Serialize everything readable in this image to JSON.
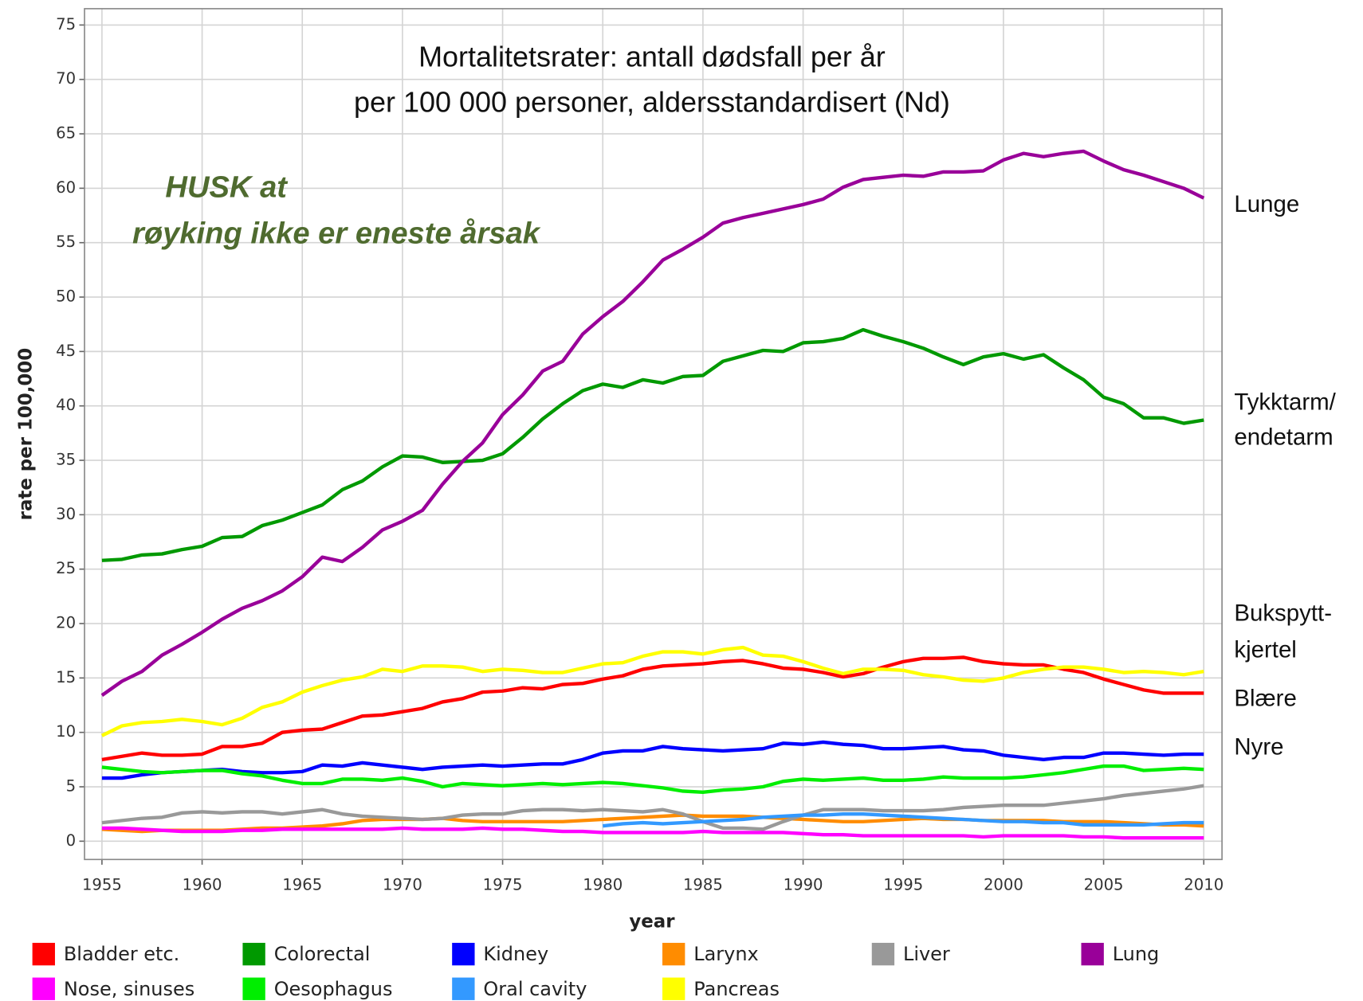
{
  "chart_data": {
    "type": "line",
    "title": [
      "Mortalitetsrater: antall dødsfall per år",
      "per 100 000 personer, aldersstandardisert (Nd)"
    ],
    "annotation": [
      "HUSK at",
      "røyking ikke er eneste årsak"
    ],
    "side_labels": [
      "Lunge",
      "Tykktarm/",
      "endetarm",
      "Bukspytt-",
      "kjertel",
      "Blære",
      "Nyre"
    ],
    "xlabel": "year",
    "ylabel": "rate per 100,000",
    "x": [
      1955,
      1956,
      1957,
      1958,
      1959,
      1960,
      1961,
      1962,
      1963,
      1964,
      1965,
      1966,
      1967,
      1968,
      1969,
      1970,
      1971,
      1972,
      1973,
      1974,
      1975,
      1976,
      1977,
      1978,
      1979,
      1980,
      1981,
      1982,
      1983,
      1984,
      1985,
      1986,
      1987,
      1988,
      1989,
      1990,
      1991,
      1992,
      1993,
      1994,
      1995,
      1996,
      1997,
      1998,
      1999,
      2000,
      2001,
      2002,
      2003,
      2004,
      2005,
      2006,
      2007,
      2008,
      2009,
      2010
    ],
    "xlim": [
      1954.13,
      2010.91
    ],
    "xticks": [
      1955,
      1960,
      1965,
      1970,
      1975,
      1980,
      1985,
      1990,
      1995,
      2000,
      2005,
      2010
    ],
    "ylim": [
      -1.68,
      76.5
    ],
    "yticks": [
      0,
      5,
      10,
      15,
      20,
      25,
      30,
      35,
      40,
      45,
      50,
      55,
      60,
      65,
      70,
      75
    ],
    "grid": true,
    "series": [
      {
        "name": "Bladder etc.",
        "color": "#ff0000",
        "values": [
          7.5,
          7.8,
          8.1,
          7.9,
          7.9,
          8.0,
          8.7,
          8.7,
          9.0,
          10.0,
          10.2,
          10.3,
          10.9,
          11.5,
          11.6,
          11.9,
          12.2,
          12.8,
          13.1,
          13.7,
          13.8,
          14.1,
          14.0,
          14.4,
          14.5,
          14.9,
          15.2,
          15.8,
          16.1,
          16.2,
          16.3,
          16.5,
          16.6,
          16.3,
          15.9,
          15.8,
          15.5,
          15.1,
          15.4,
          16.0,
          16.5,
          16.8,
          16.8,
          16.9,
          16.5,
          16.3,
          16.2,
          16.2,
          15.8,
          15.5,
          14.9,
          14.4,
          13.9,
          13.6,
          13.6,
          13.6
        ]
      },
      {
        "name": "Colorectal",
        "color": "#009900",
        "values": [
          25.8,
          25.9,
          26.3,
          26.4,
          26.8,
          27.1,
          27.9,
          28.0,
          29.0,
          29.5,
          30.2,
          30.9,
          32.3,
          33.1,
          34.4,
          35.4,
          35.3,
          34.8,
          34.9,
          35.0,
          35.6,
          37.1,
          38.8,
          40.2,
          41.4,
          42.0,
          41.7,
          42.4,
          42.1,
          42.7,
          42.8,
          44.1,
          44.6,
          45.1,
          45.0,
          45.8,
          45.9,
          46.2,
          47.0,
          46.4,
          45.9,
          45.3,
          44.5,
          43.8,
          44.5,
          44.8,
          44.3,
          44.7,
          43.5,
          42.4,
          40.8,
          40.2,
          38.9,
          38.9,
          38.4,
          38.7
        ]
      },
      {
        "name": "Kidney",
        "color": "#0000ff",
        "values": [
          5.8,
          5.8,
          6.1,
          6.3,
          6.4,
          6.5,
          6.6,
          6.4,
          6.3,
          6.3,
          6.4,
          7.0,
          6.9,
          7.2,
          7.0,
          6.8,
          6.6,
          6.8,
          6.9,
          7.0,
          6.9,
          7.0,
          7.1,
          7.1,
          7.5,
          8.1,
          8.3,
          8.3,
          8.7,
          8.5,
          8.4,
          8.3,
          8.4,
          8.5,
          9.0,
          8.9,
          9.1,
          8.9,
          8.8,
          8.5,
          8.5,
          8.6,
          8.7,
          8.4,
          8.3,
          7.9,
          7.7,
          7.5,
          7.7,
          7.7,
          8.1,
          8.1,
          8.0,
          7.9,
          8.0,
          8.0
        ]
      },
      {
        "name": "Larynx",
        "color": "#ff8c00",
        "values": [
          1.1,
          1.0,
          0.9,
          1.0,
          1.0,
          1.0,
          1.0,
          1.1,
          1.2,
          1.2,
          1.3,
          1.4,
          1.6,
          1.9,
          2.0,
          2.0,
          2.0,
          2.1,
          1.9,
          1.8,
          1.8,
          1.8,
          1.8,
          1.8,
          1.9,
          2.0,
          2.1,
          2.2,
          2.3,
          2.4,
          2.3,
          2.3,
          2.3,
          2.2,
          2.1,
          2.0,
          1.9,
          1.8,
          1.8,
          1.9,
          2.0,
          2.1,
          2.0,
          2.0,
          1.9,
          1.9,
          1.9,
          1.9,
          1.8,
          1.8,
          1.8,
          1.7,
          1.6,
          1.5,
          1.5,
          1.4
        ]
      },
      {
        "name": "Liver",
        "color": "#999999",
        "values": [
          1.7,
          1.9,
          2.1,
          2.2,
          2.6,
          2.7,
          2.6,
          2.7,
          2.7,
          2.5,
          2.7,
          2.9,
          2.5,
          2.3,
          2.2,
          2.1,
          2.0,
          2.1,
          2.4,
          2.5,
          2.5,
          2.8,
          2.9,
          2.9,
          2.8,
          2.9,
          2.8,
          2.7,
          2.9,
          2.5,
          1.8,
          1.2,
          1.2,
          1.1,
          1.8,
          2.4,
          2.9,
          2.9,
          2.9,
          2.8,
          2.8,
          2.8,
          2.9,
          3.1,
          3.2,
          3.3,
          3.3,
          3.3,
          3.5,
          3.7,
          3.9,
          4.2,
          4.4,
          4.6,
          4.8,
          5.1
        ]
      },
      {
        "name": "Lung",
        "color": "#990099",
        "values": [
          13.4,
          14.7,
          15.6,
          17.1,
          18.1,
          19.2,
          20.4,
          21.4,
          22.1,
          23.0,
          24.3,
          26.1,
          25.7,
          27.0,
          28.6,
          29.4,
          30.4,
          32.8,
          34.9,
          36.6,
          39.2,
          41.0,
          43.2,
          44.1,
          46.6,
          48.2,
          49.6,
          51.4,
          53.4,
          54.4,
          55.5,
          56.8,
          57.3,
          57.7,
          58.1,
          58.5,
          59.0,
          60.1,
          60.8,
          61.0,
          61.2,
          61.1,
          61.5,
          61.5,
          61.6,
          62.6,
          63.2,
          62.9,
          63.2,
          63.4,
          62.5,
          61.7,
          61.2,
          60.6,
          60.0,
          59.1
        ]
      },
      {
        "name": "Nose, sinuses",
        "color": "#ff00ff",
        "values": [
          1.2,
          1.2,
          1.1,
          1.0,
          0.9,
          0.9,
          0.9,
          1.0,
          1.0,
          1.1,
          1.1,
          1.1,
          1.1,
          1.1,
          1.1,
          1.2,
          1.1,
          1.1,
          1.1,
          1.2,
          1.1,
          1.1,
          1.0,
          0.9,
          0.9,
          0.8,
          0.8,
          0.8,
          0.8,
          0.8,
          0.9,
          0.8,
          0.8,
          0.8,
          0.8,
          0.7,
          0.6,
          0.6,
          0.5,
          0.5,
          0.5,
          0.5,
          0.5,
          0.5,
          0.4,
          0.5,
          0.5,
          0.5,
          0.5,
          0.4,
          0.4,
          0.3,
          0.3,
          0.3,
          0.3,
          0.3
        ]
      },
      {
        "name": "Oesophagus",
        "color": "#00ee00",
        "values": [
          6.8,
          6.6,
          6.4,
          6.3,
          6.4,
          6.5,
          6.5,
          6.2,
          6.0,
          5.6,
          5.3,
          5.3,
          5.7,
          5.7,
          5.6,
          5.8,
          5.5,
          5.0,
          5.3,
          5.2,
          5.1,
          5.2,
          5.3,
          5.2,
          5.3,
          5.4,
          5.3,
          5.1,
          4.9,
          4.6,
          4.5,
          4.7,
          4.8,
          5.0,
          5.5,
          5.7,
          5.6,
          5.7,
          5.8,
          5.6,
          5.6,
          5.7,
          5.9,
          5.8,
          5.8,
          5.8,
          5.9,
          6.1,
          6.3,
          6.6,
          6.9,
          6.9,
          6.5,
          6.6,
          6.7,
          6.6
        ]
      },
      {
        "name": "Oral cavity",
        "color": "#3399ff",
        "values": [
          null,
          null,
          null,
          null,
          null,
          null,
          null,
          null,
          null,
          null,
          null,
          null,
          null,
          null,
          null,
          null,
          null,
          null,
          null,
          null,
          null,
          null,
          null,
          null,
          null,
          1.4,
          1.6,
          1.7,
          1.6,
          1.7,
          1.8,
          1.9,
          2.0,
          2.2,
          2.3,
          2.4,
          2.4,
          2.5,
          2.5,
          2.4,
          2.3,
          2.2,
          2.1,
          2.0,
          1.9,
          1.8,
          1.8,
          1.7,
          1.7,
          1.5,
          1.5,
          1.5,
          1.5,
          1.6,
          1.7,
          1.7
        ]
      },
      {
        "name": "Pancreas",
        "color": "#ffff00",
        "values": [
          9.7,
          10.6,
          10.9,
          11.0,
          11.2,
          11.0,
          10.7,
          11.3,
          12.3,
          12.8,
          13.7,
          14.3,
          14.8,
          15.1,
          15.8,
          15.6,
          16.1,
          16.1,
          16.0,
          15.6,
          15.8,
          15.7,
          15.5,
          15.5,
          15.9,
          16.3,
          16.4,
          17.0,
          17.4,
          17.4,
          17.2,
          17.6,
          17.8,
          17.1,
          17.0,
          16.5,
          15.9,
          15.4,
          15.8,
          15.8,
          15.7,
          15.3,
          15.1,
          14.8,
          14.7,
          15.0,
          15.5,
          15.8,
          16.0,
          16.0,
          15.8,
          15.5,
          15.6,
          15.5,
          15.3,
          15.6
        ]
      }
    ]
  }
}
